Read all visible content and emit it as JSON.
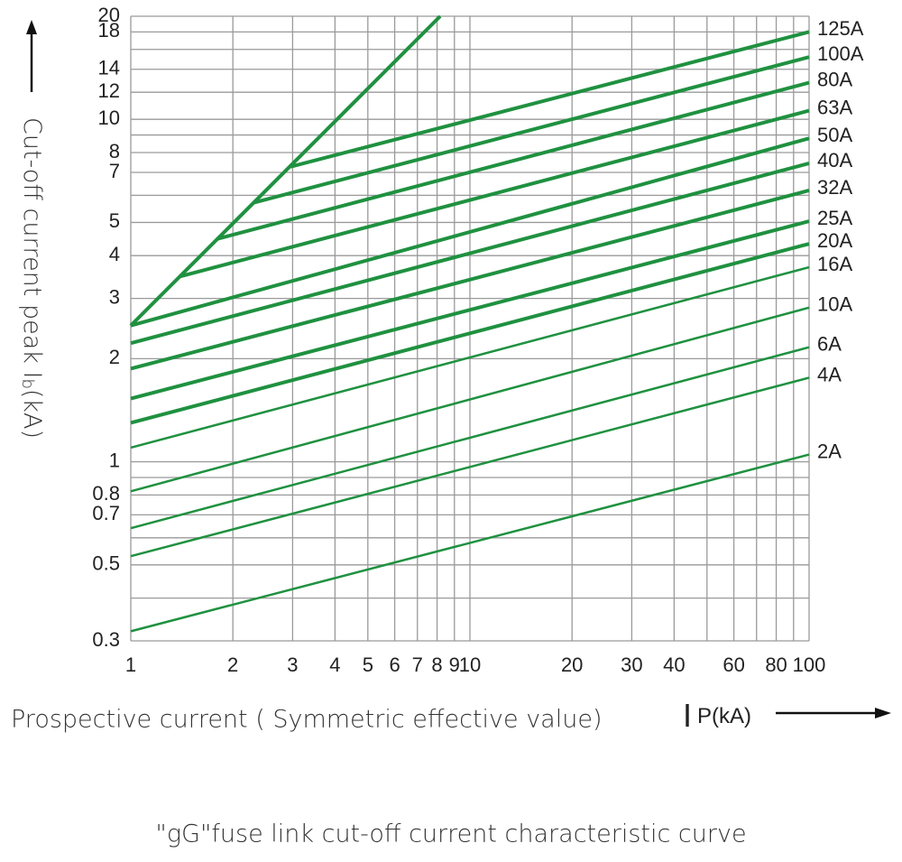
{
  "chart_data": {
    "type": "line",
    "ylabel": "Cut-off current peak I",
    "ylabel_sub": "b",
    "ylabel_unit": "(kA)",
    "xlabel": "Prospective current ( Symmetric effective value)",
    "xlabel_symbol": "I",
    "xlabel_sub": "P",
    "xlabel_unit": "(kA)",
    "caption": "\"gG\"fuse link cut-off current characteristic curve",
    "log_x": true,
    "log_y": true,
    "grid": true,
    "xlim": [
      1,
      100
    ],
    "ylim": [
      0.3,
      20
    ],
    "xticks": [
      1,
      2,
      3,
      4,
      5,
      6,
      7,
      8,
      9,
      10,
      20,
      30,
      40,
      60,
      80,
      100
    ],
    "xgrid_minor": [
      50,
      70,
      90
    ],
    "yticks": [
      0.3,
      0.5,
      0.7,
      0.8,
      1,
      2,
      3,
      4,
      5,
      7,
      8,
      10,
      12,
      14,
      18,
      20
    ],
    "ygrid_minor": [
      0.4,
      0.6,
      0.9,
      6,
      9,
      16
    ],
    "envelope": {
      "x": [
        1,
        8.17
      ],
      "values": [
        2.5,
        20
      ],
      "color": "#1f9140",
      "line_width": 4
    },
    "series": [
      {
        "name": "125A",
        "color": "#1f9140",
        "line_width": 4,
        "x": [
          2.96,
          100
        ],
        "values": [
          7.27,
          18.0
        ]
      },
      {
        "name": "100A",
        "color": "#1f9140",
        "line_width": 4,
        "x": [
          2.29,
          100
        ],
        "values": [
          5.7,
          15.2
        ]
      },
      {
        "name": "80A",
        "color": "#1f9140",
        "line_width": 4,
        "x": [
          1.79,
          100
        ],
        "values": [
          4.47,
          12.8
        ]
      },
      {
        "name": "63A",
        "color": "#1f9140",
        "line_width": 4,
        "x": [
          1.4,
          100
        ],
        "values": [
          3.48,
          10.6
        ]
      },
      {
        "name": "50A",
        "color": "#1f9140",
        "line_width": 4,
        "x": [
          1,
          100
        ],
        "values": [
          2.5,
          8.8
        ]
      },
      {
        "name": "40A",
        "color": "#1f9140",
        "line_width": 4,
        "x": [
          1,
          100
        ],
        "values": [
          2.22,
          7.44
        ]
      },
      {
        "name": "32A",
        "color": "#1f9140",
        "line_width": 4,
        "x": [
          1,
          100
        ],
        "values": [
          1.87,
          6.2
        ]
      },
      {
        "name": "25A",
        "color": "#1f9140",
        "line_width": 4,
        "x": [
          1,
          100
        ],
        "values": [
          1.53,
          5.04
        ]
      },
      {
        "name": "20A",
        "color": "#1f9140",
        "line_width": 4,
        "x": [
          1,
          100
        ],
        "values": [
          1.3,
          4.33
        ]
      },
      {
        "name": "16A",
        "color": "#1f9140",
        "line_width": 2.5,
        "x": [
          1,
          100
        ],
        "values": [
          1.1,
          3.7
        ]
      },
      {
        "name": "10A",
        "color": "#1f9140",
        "line_width": 2.5,
        "x": [
          1,
          100
        ],
        "values": [
          0.82,
          2.82
        ]
      },
      {
        "name": "6A",
        "color": "#1f9140",
        "line_width": 2.5,
        "x": [
          1,
          100
        ],
        "values": [
          0.64,
          2.16
        ]
      },
      {
        "name": "4A",
        "color": "#1f9140",
        "line_width": 2.5,
        "x": [
          1,
          100
        ],
        "values": [
          0.53,
          1.76
        ]
      },
      {
        "name": "2A",
        "color": "#1f9140",
        "line_width": 2.5,
        "x": [
          1,
          100
        ],
        "values": [
          0.32,
          1.05
        ]
      }
    ]
  }
}
